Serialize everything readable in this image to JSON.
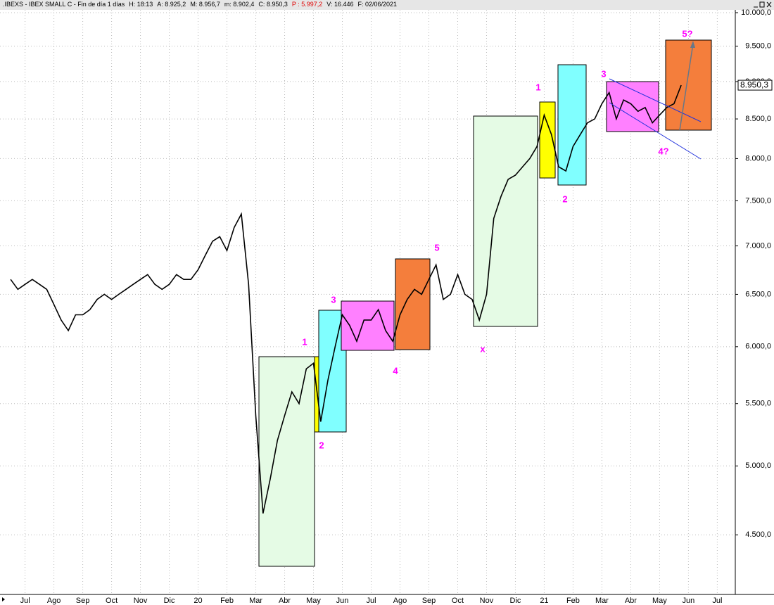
{
  "header": {
    "title": ".IBEXS - IBEX SMALL C - Fin de día 1 días",
    "fields": [
      "H: 18:13",
      "A: 8.925,2",
      "M: 8.956,7",
      "m: 8.902,4",
      "C: 8.950,3"
    ],
    "highlight": "P : 5.997,2",
    "tail": [
      "V: 16.446",
      "F: 02/06/2021"
    ]
  },
  "chart_data": {
    "type": "line",
    "log_scale": true,
    "grid": true,
    "categories": [
      null,
      null,
      "Jul",
      null,
      null,
      null,
      "Ago",
      null,
      null,
      null,
      "Sep",
      null,
      null,
      null,
      "Oct",
      null,
      null,
      null,
      "Nov",
      null,
      null,
      null,
      "Dic",
      null,
      null,
      null,
      "20",
      null,
      null,
      null,
      "Feb",
      null,
      null,
      null,
      "Mar",
      null,
      null,
      null,
      "Abr",
      null,
      null,
      null,
      "May",
      null,
      null,
      null,
      "Jun",
      null,
      null,
      null,
      "Jul",
      null,
      null,
      null,
      "Ago",
      null,
      null,
      null,
      "Sep",
      null,
      null,
      null,
      "Oct",
      null,
      null,
      null,
      "Nov",
      null,
      null,
      null,
      "Dic",
      null,
      null,
      null,
      "21",
      null,
      null,
      null,
      "Feb",
      null,
      null,
      null,
      "Mar",
      null,
      null,
      null,
      "Abr",
      null,
      null,
      null,
      "May",
      null,
      null,
      null,
      "Jun",
      null,
      null,
      null,
      "Jul",
      null,
      null
    ],
    "series": [
      {
        "name": ".IBEXS",
        "color": "#000000",
        "values": [
          6650,
          6550,
          6600,
          6650,
          6600,
          6550,
          6400,
          6250,
          6150,
          6300,
          6300,
          6350,
          6450,
          6500,
          6450,
          6500,
          6550,
          6600,
          6650,
          6700,
          6600,
          6550,
          6600,
          6700,
          6650,
          6650,
          6750,
          6900,
          7050,
          7100,
          6950,
          7200,
          7350,
          6600,
          5400,
          4650,
          4900,
          5200,
          5400,
          5600,
          5500,
          5800,
          5850,
          5350,
          5700,
          6000,
          6300,
          6200,
          6050,
          6250,
          6250,
          6350,
          6150,
          6050,
          6300,
          6450,
          6550,
          6500,
          6650,
          6800,
          6450,
          6500,
          6700,
          6500,
          6450,
          6250,
          6500,
          7300,
          7550,
          7750,
          7800,
          7900,
          8000,
          8150,
          8550,
          8300,
          7900,
          7850,
          8150,
          8300,
          8450,
          8500,
          8700,
          8850,
          8500,
          8750,
          8700,
          8600,
          8650,
          8450,
          8550,
          8650,
          8700,
          8950.3,
          null,
          null,
          null,
          null,
          null,
          null,
          null
        ]
      }
    ],
    "ylim": [
      4130,
      10000
    ],
    "yticks": [
      {
        "value": 4500,
        "label": "4.500,0"
      },
      {
        "value": 5000,
        "label": "5.000,0"
      },
      {
        "value": 5500,
        "label": "5.500,0"
      },
      {
        "value": 6000,
        "label": "6.000,0"
      },
      {
        "value": 6500,
        "label": "6.500,0"
      },
      {
        "value": 7000,
        "label": "7.000,0"
      },
      {
        "value": 7500,
        "label": "7.500,0"
      },
      {
        "value": 8000,
        "label": "8.000,0"
      },
      {
        "value": 8500,
        "label": "8.500,0"
      },
      {
        "value": 9000,
        "label": "9.000,0"
      },
      {
        "value": 9500,
        "label": "9.500,0"
      },
      {
        "value": 10000,
        "label": "10.000,0"
      }
    ],
    "last_value": {
      "value": 8950.3,
      "label": "8.950,3"
    },
    "annotations": [
      "1",
      "2",
      "3",
      "4",
      "5",
      "x",
      "1",
      "2",
      "3",
      "4?",
      "5?"
    ]
  }
}
